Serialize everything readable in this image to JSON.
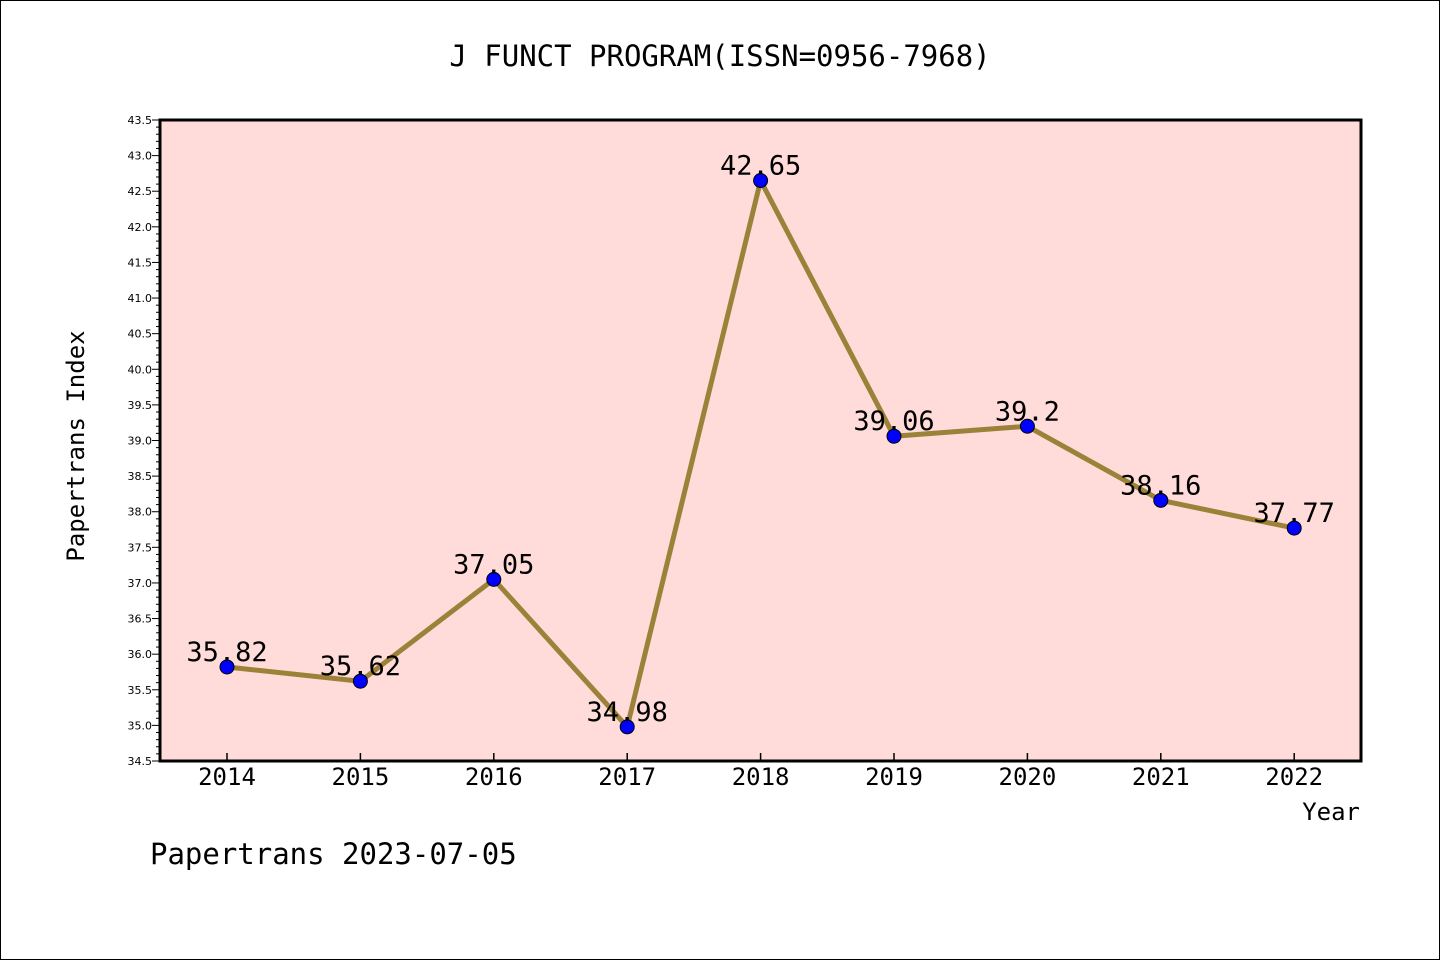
{
  "chart_data": {
    "type": "line",
    "title": "J FUNCT PROGRAM(ISSN=0956-7968)",
    "xlabel": "Year",
    "ylabel": "Papertrans Index",
    "footer": "Papertrans 2023-07-05",
    "categories": [
      "2014",
      "2015",
      "2016",
      "2017",
      "2018",
      "2019",
      "2020",
      "2021",
      "2022"
    ],
    "series": [
      {
        "values": [
          35.82,
          35.62,
          37.05,
          34.98,
          42.65,
          39.06,
          39.2,
          38.16,
          37.77
        ],
        "labels": [
          "35.82",
          "35.62",
          "37.05",
          "34.98",
          "42.65",
          "39.06",
          "39.2",
          "38.16",
          "37.77"
        ]
      }
    ],
    "ylim": [
      34.5,
      43.5
    ],
    "yticks": [
      "34.5",
      "35.0",
      "35.5",
      "36.0",
      "36.5",
      "37.0",
      "37.5",
      "38.0",
      "38.5",
      "39.0",
      "39.5",
      "40.0",
      "40.5",
      "41.0",
      "41.5",
      "42.0",
      "42.5",
      "43.0",
      "43.5"
    ],
    "grid": false,
    "colors": {
      "plot_background": "#FFDCDA",
      "line": "#9C8238",
      "marker": "#0000FF"
    }
  }
}
